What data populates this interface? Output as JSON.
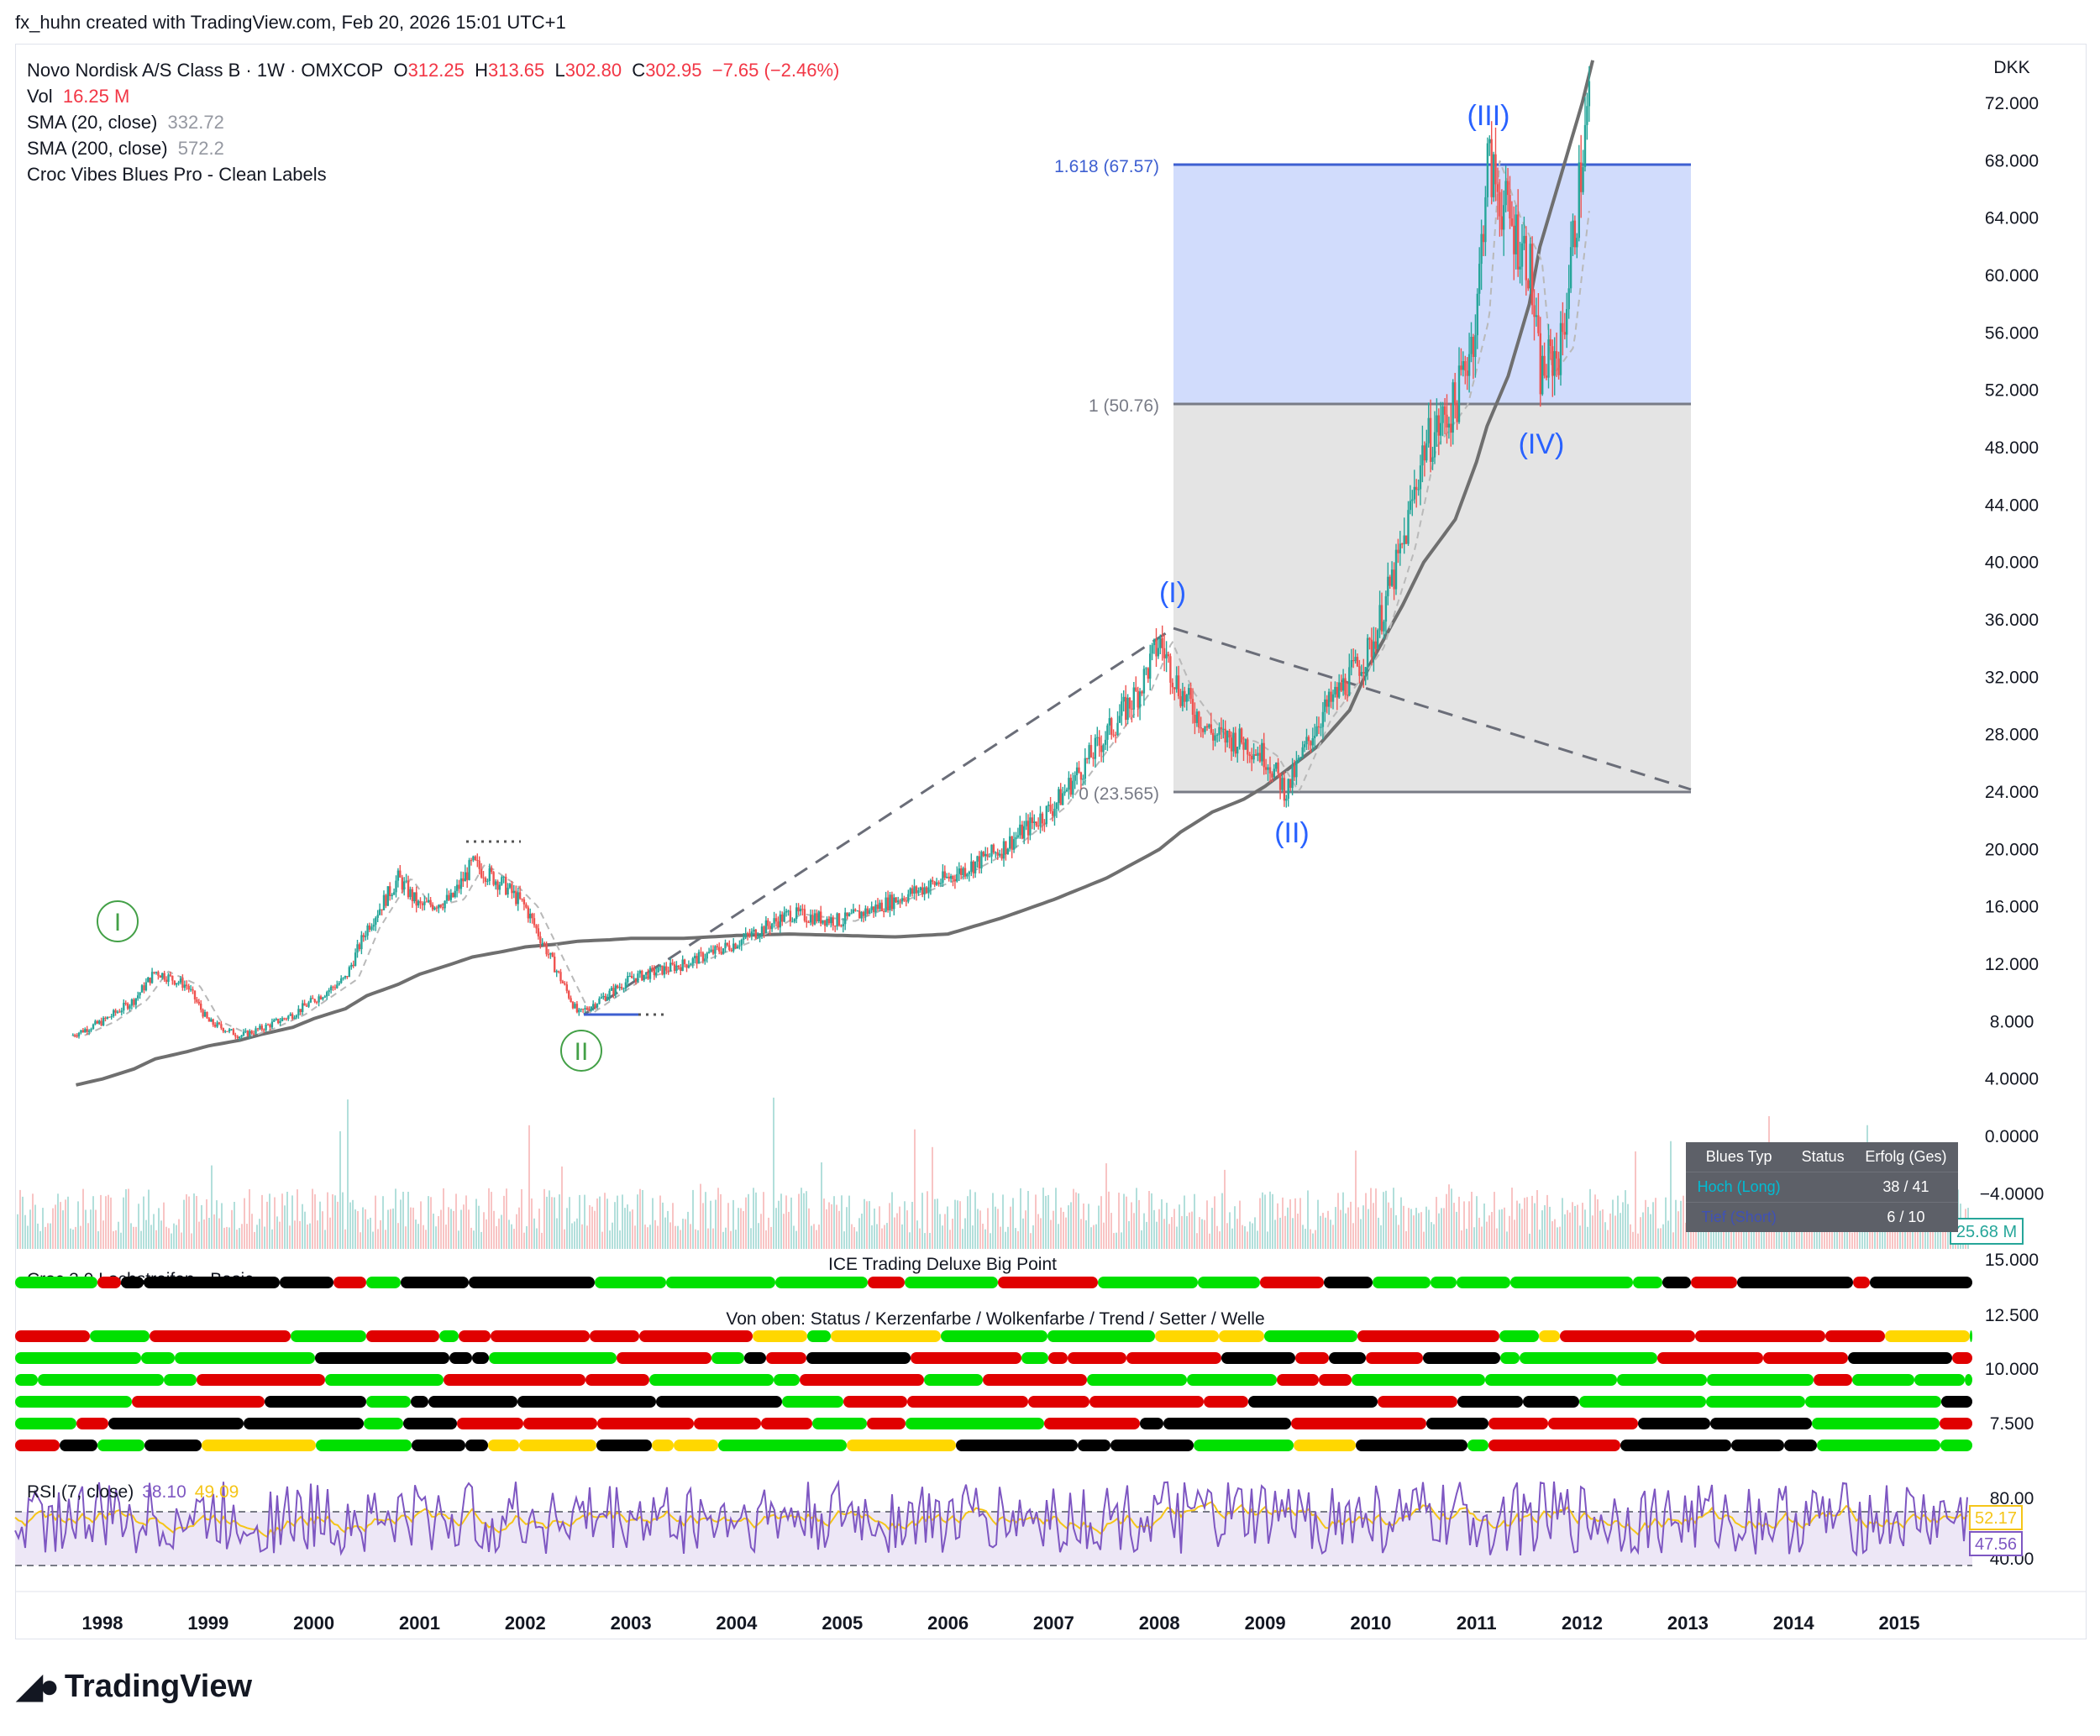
{
  "header": {
    "created_by": "fx_huhn created with TradingView.com, Feb 20, 2026 15:01 UTC+1"
  },
  "legend": {
    "symbol": "Novo Nordisk A/S Class B · 1W · OMXCOP",
    "o_label": "O",
    "o_value": "312.25",
    "h_label": "H",
    "h_value": "313.65",
    "l_label": "L",
    "l_value": "302.80",
    "c_label": "C",
    "c_value": "302.95",
    "change": "−7.65 (−2.46%)",
    "vol_label": "Vol",
    "vol_value": "16.25 M",
    "sma20_label": "SMA (20, close)",
    "sma20_value": "332.72",
    "sma200_label": "SMA (200, close)",
    "sma200_value": "572.2",
    "indicator": "Croc Vibes Blues Pro - Clean Labels"
  },
  "axis": {
    "currency": "DKK",
    "price_ticks": [
      "72.000",
      "68.000",
      "64.000",
      "60.000",
      "56.000",
      "52.000",
      "48.000",
      "44.000",
      "40.000",
      "36.000",
      "32.000",
      "28.000",
      "24.000",
      "20.000",
      "16.000",
      "12.000",
      "8.000",
      "4.0000",
      "0.0000",
      "−4.0000"
    ],
    "volume_badge": "25.68 M",
    "strip_ticks": [
      "15.000",
      "12.500",
      "10.000",
      "7.500"
    ],
    "rsi_ticks": [
      "80.00",
      "40.00"
    ],
    "rsi_badge_1": "52.17",
    "rsi_badge_2": "47.56",
    "years": [
      "1998",
      "1999",
      "2000",
      "2001",
      "2002",
      "2003",
      "2004",
      "2005",
      "2006",
      "2007",
      "2008",
      "2009",
      "2010",
      "2011",
      "2012",
      "2013",
      "2014",
      "2015"
    ]
  },
  "fib": {
    "level_1618": "1.618 (67.57)",
    "level_1": "1 (50.76)",
    "level_0": "0 (23.565)"
  },
  "waves": {
    "w1": "I",
    "w2": "II",
    "wI": "(I)",
    "wII": "(II)",
    "wIII": "(III)",
    "wIV": "(IV)"
  },
  "panels": {
    "lochstreifen": "Croc 3.0 Lochstreifen - Basic",
    "ice": "ICE Trading Deluxe Big Point",
    "von_oben": "Von oben: Status / Kerzenfarbe / Wolkenfarbe / Trend / Setter / Welle",
    "rsi_label": "RSI (7, close)",
    "rsi_value": "38.10",
    "rsi_ma_value": "49.09"
  },
  "blues_table": {
    "headers": [
      "Blues Typ",
      "Status",
      "Erfolg (Ges)"
    ],
    "rows": [
      {
        "typ": "Hoch (Long)",
        "status": "",
        "erfolg": "38 / 41"
      },
      {
        "typ": "Tief (Short)",
        "status": "",
        "erfolg": "6 / 10"
      }
    ]
  },
  "chart_data": {
    "type": "line",
    "title": "Novo Nordisk A/S Class B · 1W · OMXCOP",
    "xlabel": "",
    "ylabel": "DKK",
    "x": [
      1997.7,
      1998.0,
      1998.3,
      1998.5,
      1998.8,
      1999.0,
      1999.3,
      1999.5,
      1999.8,
      2000.0,
      2000.3,
      2000.5,
      2000.8,
      2001.0,
      2001.3,
      2001.5,
      2001.8,
      2002.0,
      2002.3,
      2002.5,
      2002.8,
      2003.0,
      2003.5,
      2004.0,
      2004.5,
      2005.0,
      2005.5,
      2006.0,
      2006.5,
      2007.0,
      2007.5,
      2007.8,
      2008.0,
      2008.2,
      2008.5,
      2008.8,
      2009.0,
      2009.2,
      2009.5,
      2009.8,
      2010.0,
      2010.3,
      2010.5,
      2010.8,
      2011.0,
      2011.1,
      2011.3,
      2011.5,
      2011.6,
      2011.8,
      2012.0,
      2012.1
    ],
    "series": [
      {
        "values": [
          7.0,
          8.0,
          9.5,
          11.5,
          10.5,
          8.0,
          7.0,
          7.5,
          8.5,
          9.5,
          11.0,
          14.5,
          18.0,
          16.0,
          16.5,
          19.0,
          17.5,
          16.0,
          11.5,
          8.5,
          10.0,
          11.0,
          12.0,
          13.5,
          15.5,
          15.0,
          16.5,
          18.0,
          20.0,
          23.0,
          28.0,
          31.0,
          34.5,
          31.0,
          28.0,
          27.5,
          26.5,
          24.0,
          29.0,
          32.0,
          34.0,
          41.0,
          48.0,
          51.0,
          57.0,
          68.0,
          64.0,
          61.0,
          53.0,
          55.0,
          68.0,
          74.0
        ]
      },
      {
        "values": [
          3.5,
          4.0,
          4.7,
          5.4,
          5.9,
          6.3,
          6.7,
          7.1,
          7.6,
          8.2,
          8.9,
          9.8,
          10.6,
          11.3,
          12.0,
          12.5,
          12.9,
          13.2,
          13.4,
          13.6,
          13.7,
          13.8,
          13.8,
          14.0,
          14.1,
          14.0,
          13.9,
          14.1,
          15.2,
          16.5,
          18.0,
          19.2,
          20.0,
          21.2,
          22.6,
          23.5,
          24.4,
          25.5,
          27.2,
          29.7,
          33.0,
          37.0,
          40.0,
          43.0,
          47.0,
          49.5,
          53.0,
          58.0,
          62.0,
          67.0,
          72.0,
          75.0
        ]
      }
    ],
    "ylim": [
      -6,
      74
    ]
  }
}
